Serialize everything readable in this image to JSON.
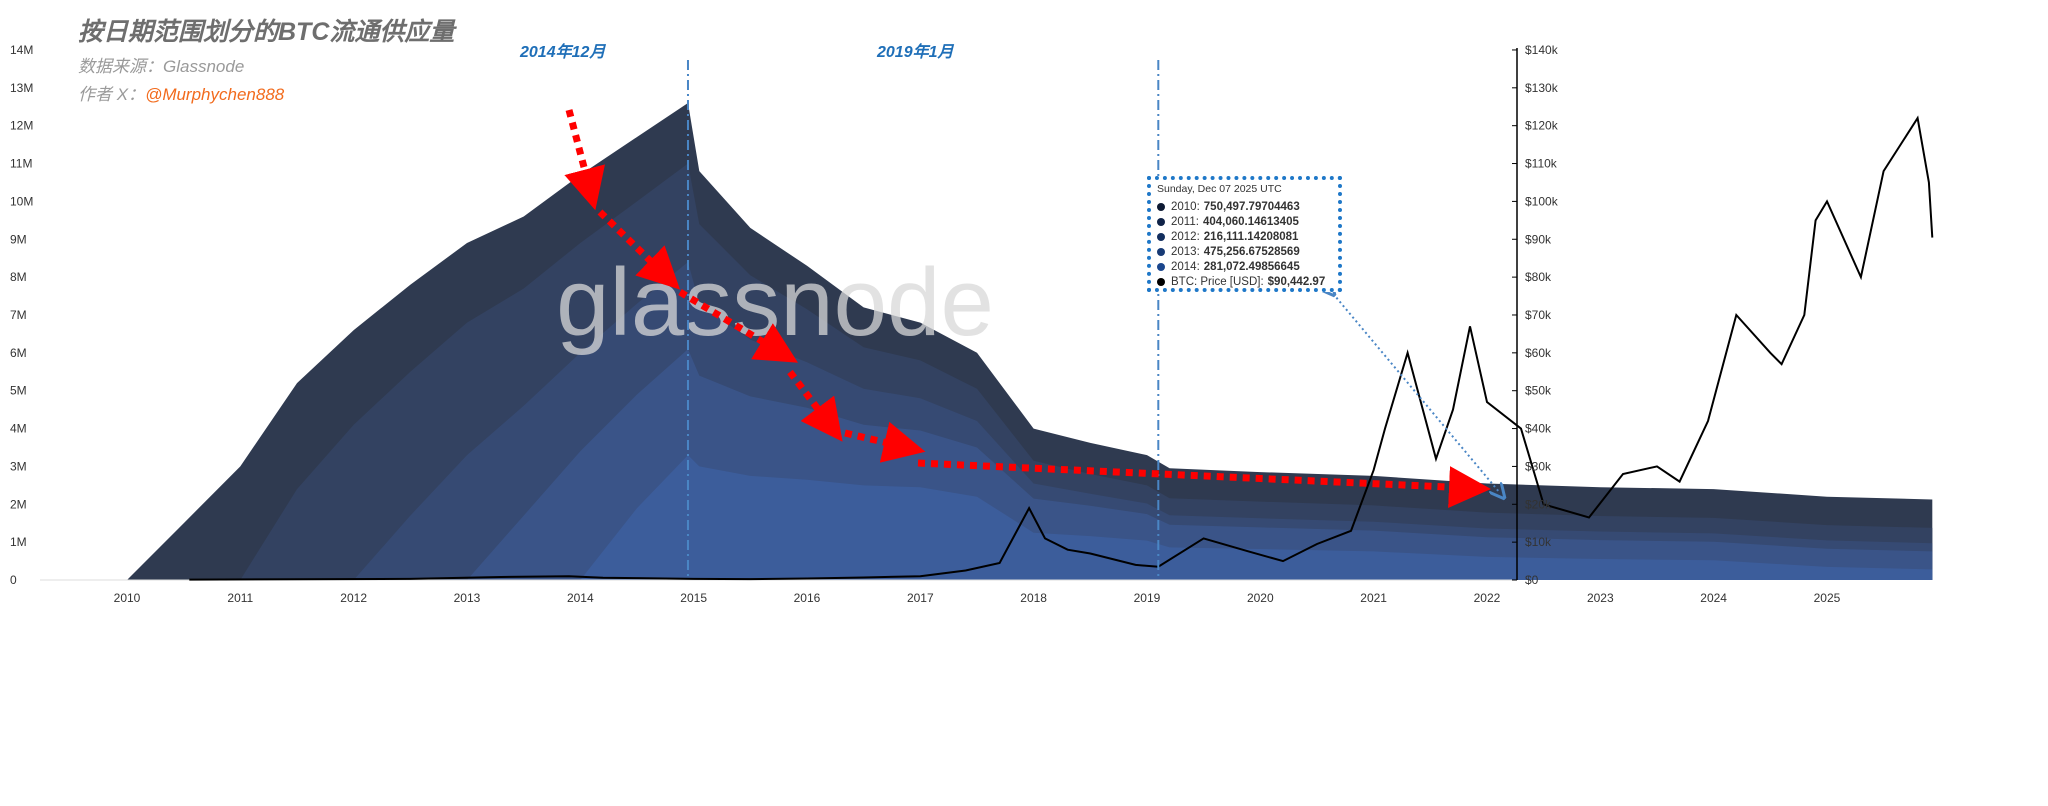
{
  "title": "按日期范围划分的BTC流通供应量",
  "source_label": "数据来源：Glassnode",
  "author_prefix": "作者 X：",
  "author_handle": "@Murphychen888",
  "watermark": "glassnode",
  "events": [
    {
      "label": "2014年12月",
      "x": 2014.95
    },
    {
      "label": "2019年1月",
      "x": 2019.1
    }
  ],
  "tooltip": {
    "date": "Sunday, Dec 07 2025 UTC",
    "rows": [
      {
        "label": "2010:",
        "value": "750,497.79704463",
        "color": "#0d1a33"
      },
      {
        "label": "2011:",
        "value": "404,060.14613405",
        "color": "#102348"
      },
      {
        "label": "2012:",
        "value": "216,111.14208081",
        "color": "#132e5e"
      },
      {
        "label": "2013:",
        "value": "475,256.67528569",
        "color": "#173a75"
      },
      {
        "label": "2014:",
        "value": "281,072.49856645",
        "color": "#1b468d"
      },
      {
        "label": "BTC: Price [USD]:",
        "value": "$90,442.97",
        "color": "#000000"
      }
    ]
  },
  "chart_data": {
    "type": "area",
    "stacked": true,
    "xlim": [
      2009.05,
      2026.2
    ],
    "ylim_left": [
      0,
      14000000
    ],
    "ylim_right": [
      0,
      140000
    ],
    "x_ticks": [
      "2010",
      "2011",
      "2012",
      "2013",
      "2014",
      "2015",
      "2016",
      "2017",
      "2018",
      "2019",
      "2020",
      "2021",
      "2022",
      "2023",
      "2024",
      "2025"
    ],
    "y_left_ticks": [
      "0",
      "1M",
      "2M",
      "3M",
      "4M",
      "5M",
      "6M",
      "7M",
      "8M",
      "9M",
      "10M",
      "11M",
      "12M",
      "13M",
      "14M"
    ],
    "y_right_ticks": [
      "$0",
      "$10k",
      "$20k",
      "$30k",
      "$40k",
      "$50k",
      "$60k",
      "$70k",
      "$80k",
      "$90k",
      "$100k",
      "$110k",
      "$120k",
      "$130k",
      "$140k"
    ],
    "grid": false,
    "x": [
      2010,
      2010.5,
      2011,
      2011.5,
      2012,
      2012.5,
      2013,
      2013.5,
      2014,
      2014.5,
      2014.95,
      2015.05,
      2015.5,
      2016,
      2016.5,
      2017,
      2017.5,
      2018,
      2018.5,
      2019,
      2019.2,
      2020,
      2021,
      2022,
      2023,
      2024,
      2025,
      2025.93
    ],
    "series": [
      {
        "name": "2014",
        "color": "#3c5d9b",
        "values": [
          0,
          0,
          0,
          0,
          0,
          0,
          0,
          0,
          0,
          1.9,
          3.3,
          3.0,
          2.75,
          2.65,
          2.5,
          2.45,
          2.2,
          1.25,
          1.16,
          1.04,
          0.86,
          0.82,
          0.755,
          0.61,
          0.555,
          0.52,
          0.347,
          0.281
        ]
      },
      {
        "name": "2013",
        "color": "#3a5488",
        "values": [
          0,
          0,
          0,
          0,
          0,
          0,
          0,
          1.7,
          3.4,
          3.0,
          2.8,
          2.4,
          2.1,
          1.9,
          1.6,
          1.5,
          1.3,
          0.9,
          0.8,
          0.7,
          0.6,
          0.57,
          0.55,
          0.52,
          0.5,
          0.49,
          0.48,
          0.475
        ]
      },
      {
        "name": "2012",
        "color": "#364a73",
        "values": [
          0,
          0,
          0,
          0,
          0,
          1.7,
          3.3,
          2.9,
          2.6,
          2.4,
          2.3,
          1.9,
          1.5,
          1.2,
          0.95,
          0.85,
          0.7,
          0.4,
          0.32,
          0.28,
          0.25,
          0.24,
          0.235,
          0.23,
          0.225,
          0.22,
          0.218,
          0.216
        ]
      },
      {
        "name": "2011",
        "color": "#334261",
        "values": [
          0,
          0,
          0,
          2.4,
          4.1,
          3.8,
          3.5,
          3.1,
          2.9,
          2.7,
          2.6,
          2.1,
          1.7,
          1.4,
          1.1,
          1.0,
          0.85,
          0.6,
          0.52,
          0.48,
          0.45,
          0.44,
          0.43,
          0.42,
          0.41,
          0.41,
          0.405,
          0.404
        ]
      },
      {
        "name": "2010",
        "color": "#2f3a50",
        "values": [
          0,
          1.5,
          3.0,
          2.8,
          2.5,
          2.3,
          2.1,
          1.9,
          1.8,
          1.7,
          1.6,
          1.4,
          1.25,
          1.15,
          1.05,
          1.0,
          0.95,
          0.85,
          0.82,
          0.8,
          0.79,
          0.78,
          0.78,
          0.77,
          0.76,
          0.76,
          0.75,
          0.7505
        ]
      }
    ],
    "values_unit": "M BTC",
    "price_series": {
      "name": "BTC: Price [USD]",
      "color": "#000000",
      "x": [
        2010.55,
        2011.5,
        2012.5,
        2013.3,
        2013.9,
        2014.2,
        2014.5,
        2015.0,
        2015.5,
        2016.0,
        2016.5,
        2017.0,
        2017.4,
        2017.7,
        2017.96,
        2018.1,
        2018.3,
        2018.5,
        2018.9,
        2019.1,
        2019.5,
        2019.9,
        2020.2,
        2020.5,
        2020.8,
        2021.0,
        2021.1,
        2021.3,
        2021.55,
        2021.7,
        2021.85,
        2022.0,
        2022.3,
        2022.5,
        2022.9,
        2023.2,
        2023.5,
        2023.7,
        2023.95,
        2024.2,
        2024.5,
        2024.6,
        2024.8,
        2024.9,
        2025.0,
        2025.3,
        2025.5,
        2025.8,
        2025.9,
        2025.93
      ],
      "values": [
        100,
        200,
        300,
        800,
        1000,
        600,
        500,
        300,
        250,
        400,
        650,
        1000,
        2500,
        4500,
        19000,
        11000,
        8000,
        7000,
        4000,
        3500,
        11000,
        7500,
        5000,
        9500,
        13000,
        29000,
        40000,
        60000,
        32000,
        45000,
        67000,
        47000,
        40000,
        20000,
        16500,
        28000,
        30000,
        26000,
        42000,
        70000,
        60000,
        57000,
        70000,
        95000,
        100000,
        80000,
        108000,
        122000,
        105000,
        90443
      ]
    }
  }
}
